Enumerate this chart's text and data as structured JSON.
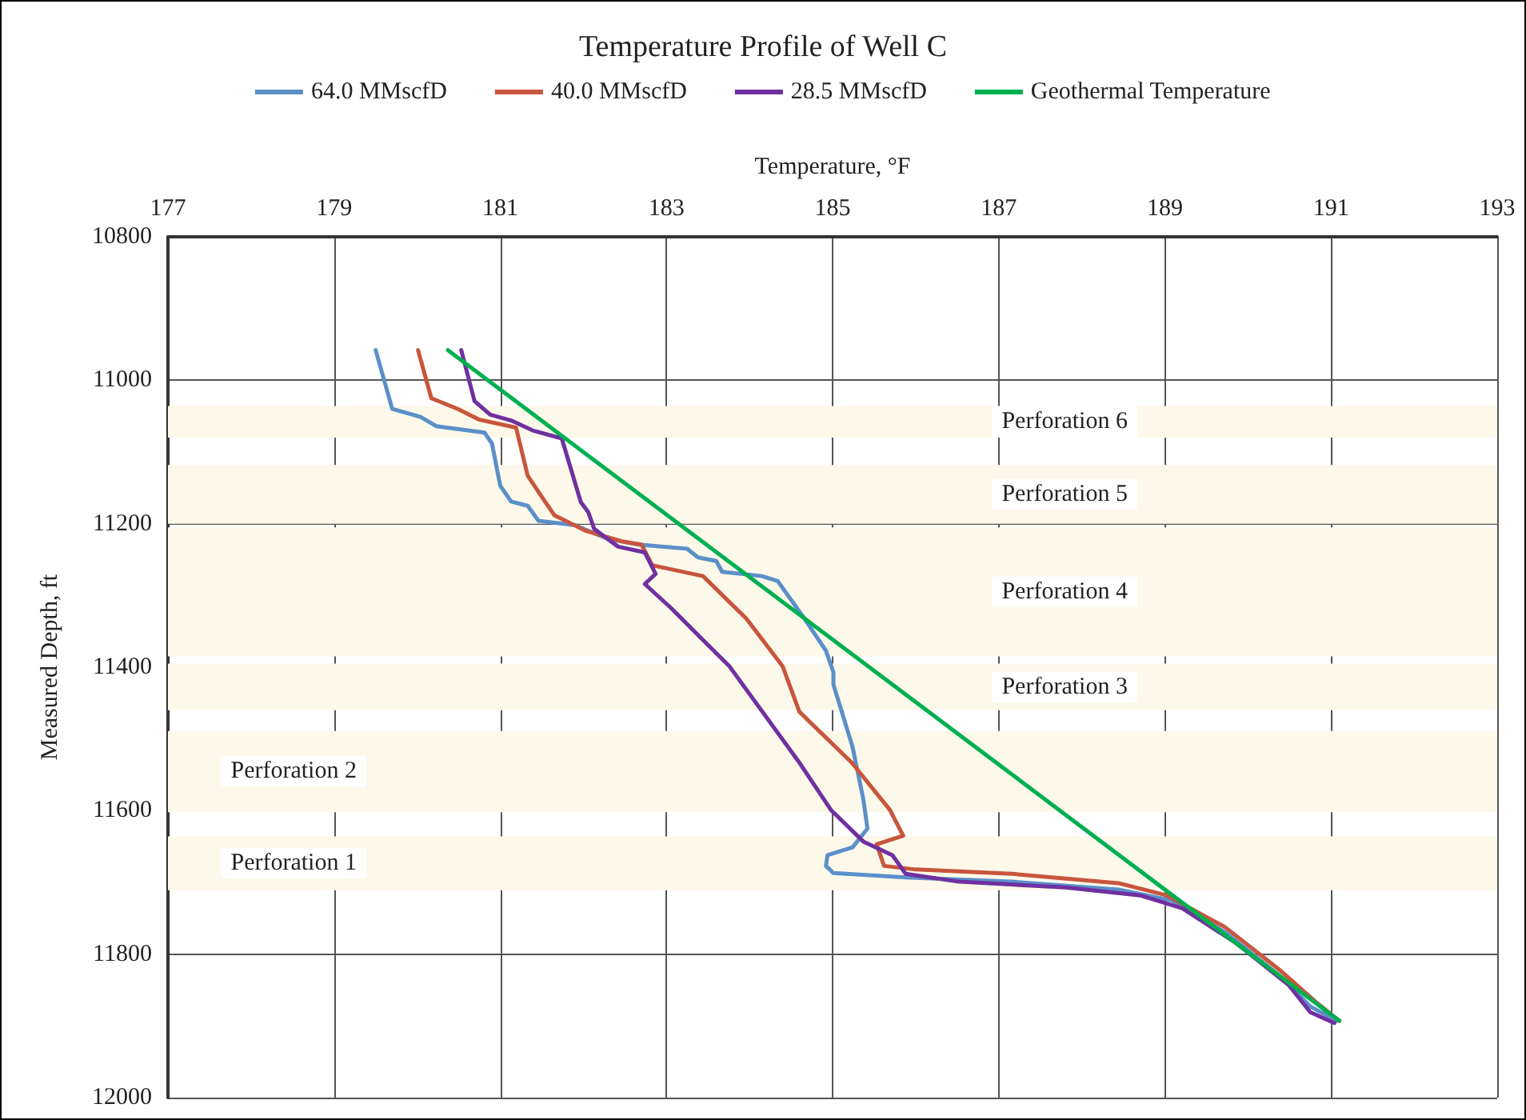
{
  "chart_data": {
    "type": "line",
    "title": "Temperature Profile of Well C",
    "xlabel": "Temperature, °F",
    "ylabel": "Measured Depth, ft",
    "xlim": [
      177,
      193
    ],
    "xticks": [
      177,
      179,
      181,
      183,
      185,
      187,
      189,
      191,
      193
    ],
    "ylim": [
      12000,
      10800
    ],
    "yticks": [
      10800,
      11000,
      11200,
      11400,
      11600,
      11800,
      12000
    ],
    "grid": true,
    "legend": "top",
    "marker": "none",
    "line_style": "solid",
    "series": [
      {
        "name": "64.0 MMscfD",
        "color": "#5b8fc9",
        "x": [
          179.5,
          179.7,
          180.04,
          180.23,
          180.81,
          180.9,
          181.0,
          181.13,
          181.33,
          181.46,
          181.9,
          182.29,
          182.67,
          183.25,
          183.38,
          183.6,
          183.67,
          184.15,
          184.34,
          184.66,
          184.92,
          185.01,
          185.01,
          185.24,
          185.37,
          185.42,
          185.24,
          184.94,
          184.92,
          185.01,
          185.88,
          187.16,
          188.44,
          189.08,
          189.72,
          190.37,
          190.75,
          191.07
        ],
        "values": [
          10958,
          11040,
          11051,
          11064,
          11073,
          11088,
          11147,
          11169,
          11175,
          11196,
          11202,
          11221,
          11229,
          11235,
          11247,
          11252,
          11267,
          11273,
          11280,
          11332,
          11377,
          11407,
          11424,
          11511,
          11584,
          11625,
          11651,
          11662,
          11677,
          11687,
          11693,
          11699,
          11710,
          11725,
          11769,
          11829,
          11873,
          11893
        ]
      },
      {
        "name": "40.0 MMscfD",
        "color": "#c8553d",
        "x": [
          180.01,
          180.17,
          180.49,
          180.75,
          181.19,
          181.33,
          181.52,
          181.65,
          182.03,
          182.48,
          182.7,
          182.83,
          183.44,
          183.96,
          184.4,
          184.6,
          185.23,
          185.69,
          185.85,
          185.53,
          185.62,
          186.0,
          187.16,
          188.44,
          189.02,
          189.72,
          190.37,
          190.81,
          191.1
        ],
        "values": [
          10958,
          11025,
          11040,
          11055,
          11066,
          11133,
          11166,
          11188,
          11210,
          11225,
          11229,
          11258,
          11273,
          11332,
          11399,
          11462,
          11533,
          11599,
          11635,
          11647,
          11677,
          11682,
          11688,
          11701,
          11718,
          11762,
          11821,
          11866,
          11893
        ]
      },
      {
        "name": "28.5 MMscfD",
        "color": "#7030a0",
        "x": [
          180.53,
          180.69,
          180.88,
          181.13,
          181.39,
          181.74,
          181.97,
          182.06,
          182.13,
          182.29,
          182.42,
          182.74,
          182.87,
          182.74,
          183.06,
          183.44,
          183.76,
          184.6,
          184.98,
          185.37,
          185.72,
          185.88,
          186.52,
          187.8,
          188.7,
          189.21,
          189.85,
          190.49,
          190.75,
          191.04
        ],
        "values": [
          10958,
          11029,
          11048,
          11056,
          11070,
          11081,
          11170,
          11184,
          11207,
          11221,
          11232,
          11240,
          11270,
          11284,
          11318,
          11362,
          11399,
          11533,
          11599,
          11643,
          11662,
          11688,
          11699,
          11707,
          11718,
          11736,
          11784,
          11843,
          11881,
          11896
        ]
      },
      {
        "name": "Geothermal Temperature",
        "color": "#00b050",
        "x": [
          180.37,
          191.1
        ],
        "values": [
          10958,
          11893
        ]
      }
    ],
    "bands": [
      {
        "axis": "y",
        "from": 11036,
        "to": 11080,
        "color": "#fdf9ea",
        "label": "Perforation 6"
      },
      {
        "axis": "y",
        "from": 11118,
        "to": 11200,
        "color": "#fdf9ea",
        "label": "Perforation 5"
      },
      {
        "axis": "y",
        "from": 11205,
        "to": 11385,
        "color": "#fdf9ea",
        "label": "Perforation 4"
      },
      {
        "axis": "y",
        "from": 11395,
        "to": 11460,
        "color": "#fdf9ea",
        "label": "Perforation 3"
      },
      {
        "axis": "y",
        "from": 11489,
        "to": 11602,
        "color": "#fdf9ea",
        "label": "Perforation 2"
      },
      {
        "axis": "y",
        "from": 11636,
        "to": 11711,
        "color": "#fdf9ea",
        "label": "Perforation 1"
      }
    ]
  }
}
